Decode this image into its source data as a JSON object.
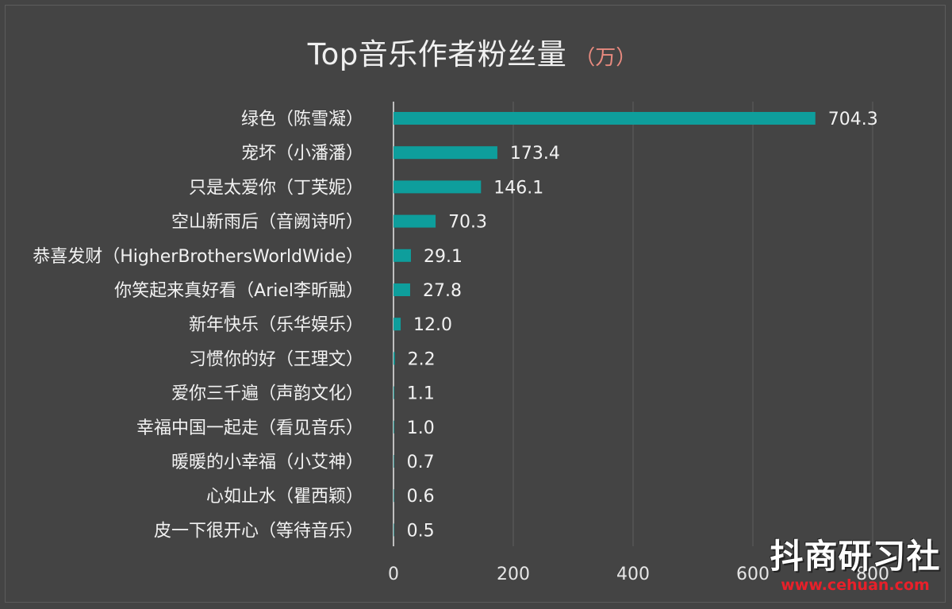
{
  "chart_data": {
    "type": "bar",
    "orientation": "horizontal",
    "title": "Top音乐作者粉丝量",
    "unit": "（万）",
    "categories": [
      "绿色（陈雪凝）",
      "宠坏（小潘潘）",
      "只是太爱你（丁芙妮）",
      "空山新雨后（音阙诗听）",
      "恭喜发财（HigherBrothersWorldWide）",
      "你笑起来真好看（Ariel李昕融）",
      "新年快乐（乐华娱乐）",
      "习惯你的好（王理文）",
      "爱你三千遍（声韵文化）",
      "幸福中国一起走（看见音乐）",
      "暖暖的小幸福（小艾神）",
      "心如止水（瞿西颖）",
      "皮一下很开心（等待音乐）"
    ],
    "values": [
      704.3,
      173.4,
      146.1,
      70.3,
      29.1,
      27.8,
      12.0,
      2.2,
      1.1,
      1.0,
      0.7,
      0.6,
      0.5
    ],
    "value_labels": [
      "704.3",
      "173.4",
      "146.1",
      "70.3",
      "29.1",
      "27.8",
      "12.0",
      "2.2",
      "1.1",
      "1.0",
      "0.7",
      "0.6",
      "0.5"
    ],
    "xlim": [
      0,
      800
    ],
    "xticks": [
      0,
      200,
      400,
      600,
      800
    ],
    "grid": true,
    "colors": {
      "bar": "#0e9e9c",
      "background": "#444444",
      "grid": "#5e5e5e",
      "axis": "#e8e8e8"
    }
  },
  "watermark": {
    "name": "抖商研习社",
    "url": "www.cehuan.com"
  }
}
